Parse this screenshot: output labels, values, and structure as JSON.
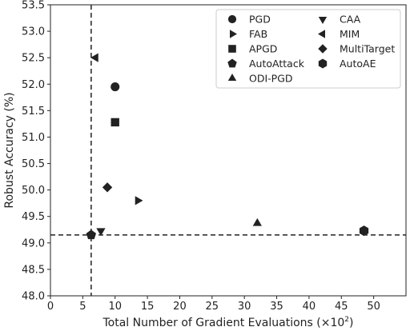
{
  "chart_data": {
    "type": "scatter",
    "xlabel": "Total Number of Gradient Evaluations (×10",
    "xlabel_sup": "2",
    "xlabel_tail": ")",
    "ylabel": "Robust Accuracy (%)",
    "xlim": [
      0,
      55
    ],
    "ylim": [
      48.0,
      53.5
    ],
    "xticks": [
      "0",
      "5",
      "10",
      "15",
      "20",
      "25",
      "30",
      "35",
      "40",
      "45",
      "50"
    ],
    "yticks": [
      "48.0",
      "48.5",
      "49.0",
      "49.5",
      "50.0",
      "50.5",
      "51.0",
      "51.5",
      "52.0",
      "52.5",
      "53.0",
      "53.5"
    ],
    "reference_lines": {
      "vertical_x": 6.3,
      "horizontal_y": 49.15,
      "style": "dashed"
    },
    "legend_position": "top-right",
    "series": [
      {
        "name": "PGD",
        "marker": "circle",
        "x": 10,
        "y": 51.95
      },
      {
        "name": "FAB",
        "marker": "triangle-right",
        "x": 13.5,
        "y": 49.8
      },
      {
        "name": "APGD",
        "marker": "square",
        "x": 10,
        "y": 51.28
      },
      {
        "name": "AutoAttack",
        "marker": "pentagon",
        "x": 6.3,
        "y": 49.15
      },
      {
        "name": "ODI-PGD",
        "marker": "triangle-up",
        "x": 32,
        "y": 49.37
      },
      {
        "name": "CAA",
        "marker": "triangle-down",
        "x": 7.8,
        "y": 49.23
      },
      {
        "name": "MIM",
        "marker": "triangle-left",
        "x": 7,
        "y": 52.5
      },
      {
        "name": "MultiTarget",
        "marker": "diamond",
        "x": 8.8,
        "y": 50.05
      },
      {
        "name": "AutoAE",
        "marker": "hexagon",
        "x": 48.5,
        "y": 49.23
      }
    ],
    "legend_columns": [
      [
        "PGD",
        "FAB",
        "APGD",
        "AutoAttack",
        "ODI-PGD"
      ],
      [
        "CAA",
        "MIM",
        "MultiTarget",
        "AutoAE"
      ]
    ]
  }
}
